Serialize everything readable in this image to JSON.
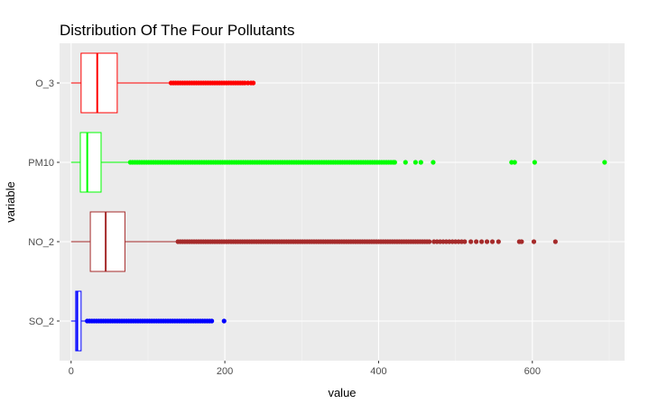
{
  "chart_data": {
    "type": "boxplot",
    "orientation": "horizontal",
    "title": "Distribution Of The Four Pollutants",
    "xlabel": "value",
    "ylabel": "variable",
    "xlim": [
      -15,
      720
    ],
    "xticks": [
      0,
      200,
      400,
      600
    ],
    "grid": true,
    "legend": "none",
    "categories": [
      "O_3",
      "PM10",
      "NO_2",
      "SO_2"
    ],
    "series": [
      {
        "category": "O_3",
        "color": "#ff0000",
        "stats": {
          "min": 0,
          "q1": 13,
          "median": 34,
          "q3": 60,
          "whisker_high": 129
        },
        "outliers": [
          130,
          133,
          136,
          139,
          142,
          145,
          148,
          151,
          154,
          157,
          160,
          163,
          166,
          169,
          172,
          175,
          178,
          181,
          184,
          187,
          190,
          193,
          196,
          199,
          202,
          205,
          208,
          211,
          214,
          217,
          220,
          223,
          226,
          230,
          234,
          237
        ]
      },
      {
        "category": "PM10",
        "color": "#00ff00",
        "stats": {
          "min": 0,
          "q1": 12,
          "median": 21,
          "q3": 39,
          "whisker_high": 75
        },
        "outliers": [
          77,
          80,
          83,
          86,
          89,
          92,
          95,
          98,
          101,
          104,
          107,
          110,
          113,
          116,
          119,
          122,
          125,
          128,
          131,
          134,
          137,
          140,
          143,
          146,
          149,
          152,
          155,
          158,
          161,
          164,
          167,
          170,
          173,
          176,
          179,
          182,
          185,
          188,
          191,
          194,
          197,
          200,
          203,
          206,
          209,
          212,
          215,
          218,
          221,
          224,
          227,
          230,
          233,
          236,
          239,
          242,
          245,
          248,
          251,
          254,
          257,
          260,
          263,
          266,
          269,
          272,
          275,
          278,
          281,
          284,
          287,
          290,
          293,
          296,
          299,
          302,
          305,
          308,
          311,
          314,
          317,
          320,
          323,
          326,
          329,
          332,
          335,
          338,
          341,
          344,
          347,
          350,
          353,
          356,
          359,
          362,
          365,
          368,
          371,
          374,
          377,
          380,
          383,
          386,
          389,
          392,
          395,
          398,
          401,
          404,
          407,
          410,
          413,
          416,
          419,
          421,
          435,
          448,
          455,
          471,
          573,
          577,
          603,
          694
        ]
      },
      {
        "category": "NO_2",
        "color": "#a52a2a",
        "stats": {
          "min": 0,
          "q1": 25,
          "median": 45,
          "q3": 70,
          "whisker_high": 137
        },
        "outliers": [
          139,
          142,
          145,
          148,
          151,
          154,
          157,
          160,
          163,
          166,
          169,
          172,
          175,
          178,
          181,
          184,
          187,
          190,
          193,
          196,
          199,
          202,
          205,
          208,
          211,
          214,
          217,
          220,
          223,
          226,
          229,
          232,
          235,
          238,
          241,
          244,
          247,
          250,
          253,
          256,
          259,
          262,
          265,
          268,
          271,
          274,
          277,
          280,
          283,
          286,
          289,
          292,
          295,
          298,
          301,
          304,
          307,
          310,
          313,
          316,
          319,
          322,
          325,
          328,
          331,
          334,
          337,
          340,
          343,
          346,
          349,
          352,
          355,
          358,
          361,
          364,
          367,
          370,
          373,
          376,
          379,
          382,
          385,
          388,
          391,
          394,
          397,
          400,
          403,
          406,
          409,
          412,
          415,
          418,
          421,
          424,
          427,
          430,
          433,
          436,
          439,
          442,
          445,
          448,
          451,
          454,
          457,
          460,
          463,
          466,
          472,
          476,
          480,
          484,
          488,
          492,
          496,
          500,
          504,
          508,
          512,
          520,
          527,
          534,
          541,
          548,
          556,
          583,
          586,
          602,
          630
        ]
      },
      {
        "category": "SO_2",
        "color": "#0000ff",
        "stats": {
          "min": 0,
          "q1": 6,
          "median": 8,
          "q3": 13,
          "whisker_high": 20
        },
        "outliers": [
          21,
          24,
          27,
          30,
          33,
          36,
          39,
          42,
          45,
          48,
          51,
          54,
          57,
          60,
          63,
          66,
          69,
          72,
          75,
          78,
          81,
          84,
          87,
          90,
          93,
          96,
          99,
          102,
          105,
          108,
          111,
          114,
          117,
          120,
          123,
          126,
          129,
          132,
          135,
          138,
          141,
          144,
          147,
          150,
          153,
          156,
          159,
          162,
          165,
          168,
          171,
          174,
          177,
          180,
          183,
          199
        ]
      }
    ]
  }
}
